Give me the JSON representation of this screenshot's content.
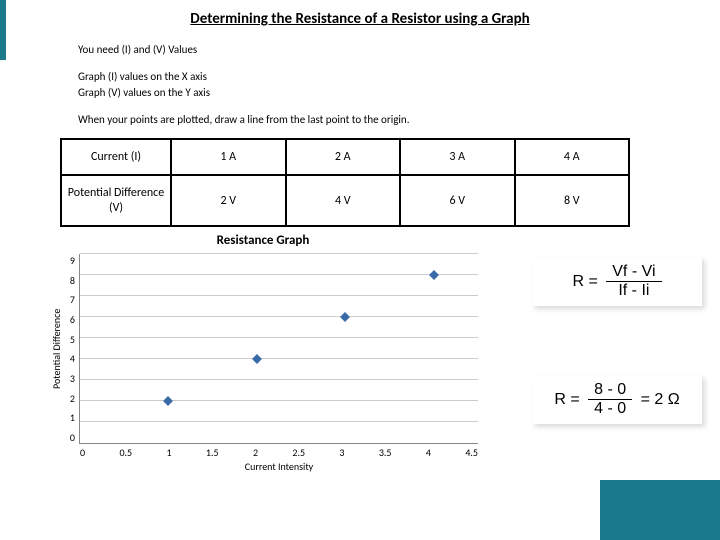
{
  "title": "Determining the Resistance of a Resistor using a Graph",
  "instructions": {
    "line1": "You need (I) and (V) Values",
    "line2a": "Graph (I) values on the X axis",
    "line2b": "Graph (V) values on the Y axis",
    "line3": "When your points are plotted, draw a line from the last point to the origin."
  },
  "table": {
    "row1_label": "Current (I)",
    "row2_label": "Potential Difference (V)",
    "cells_row1": [
      "1 A",
      "2 A",
      "3 A",
      "4 A"
    ],
    "cells_row2": [
      "2 V",
      "4 V",
      "6 V",
      "8 V"
    ]
  },
  "chart": {
    "type": "scatter",
    "title": "Resistance Graph",
    "xlabel": "Current Intensity",
    "ylabel": "Potential Difference",
    "xlim": [
      0,
      4.5
    ],
    "ylim": [
      0,
      9
    ],
    "xticks": [
      "0",
      "0.5",
      "1",
      "1.5",
      "2",
      "2.5",
      "3",
      "3.5",
      "4",
      "4.5"
    ],
    "yticks": [
      "9",
      "8",
      "7",
      "6",
      "5",
      "4",
      "3",
      "2",
      "1",
      "0"
    ],
    "grid_color": "#cccccc",
    "axis_color": "#888888",
    "point_color": "#3a6aa8",
    "background_color": "#ffffff",
    "tick_fontsize": 10,
    "label_fontsize": 10,
    "title_fontsize": 13,
    "points": [
      {
        "x": 1,
        "y": 2
      },
      {
        "x": 2,
        "y": 4
      },
      {
        "x": 3,
        "y": 6
      },
      {
        "x": 4,
        "y": 8
      }
    ]
  },
  "formula1": {
    "left": "R =",
    "numerator": "Vf - Vi",
    "denominator": "If - Ii"
  },
  "formula2": {
    "left": "R =",
    "numerator": "8 - 0",
    "denominator": "4 - 0",
    "result": "= 2 Ω"
  },
  "accent_color": "#1a7a8c"
}
